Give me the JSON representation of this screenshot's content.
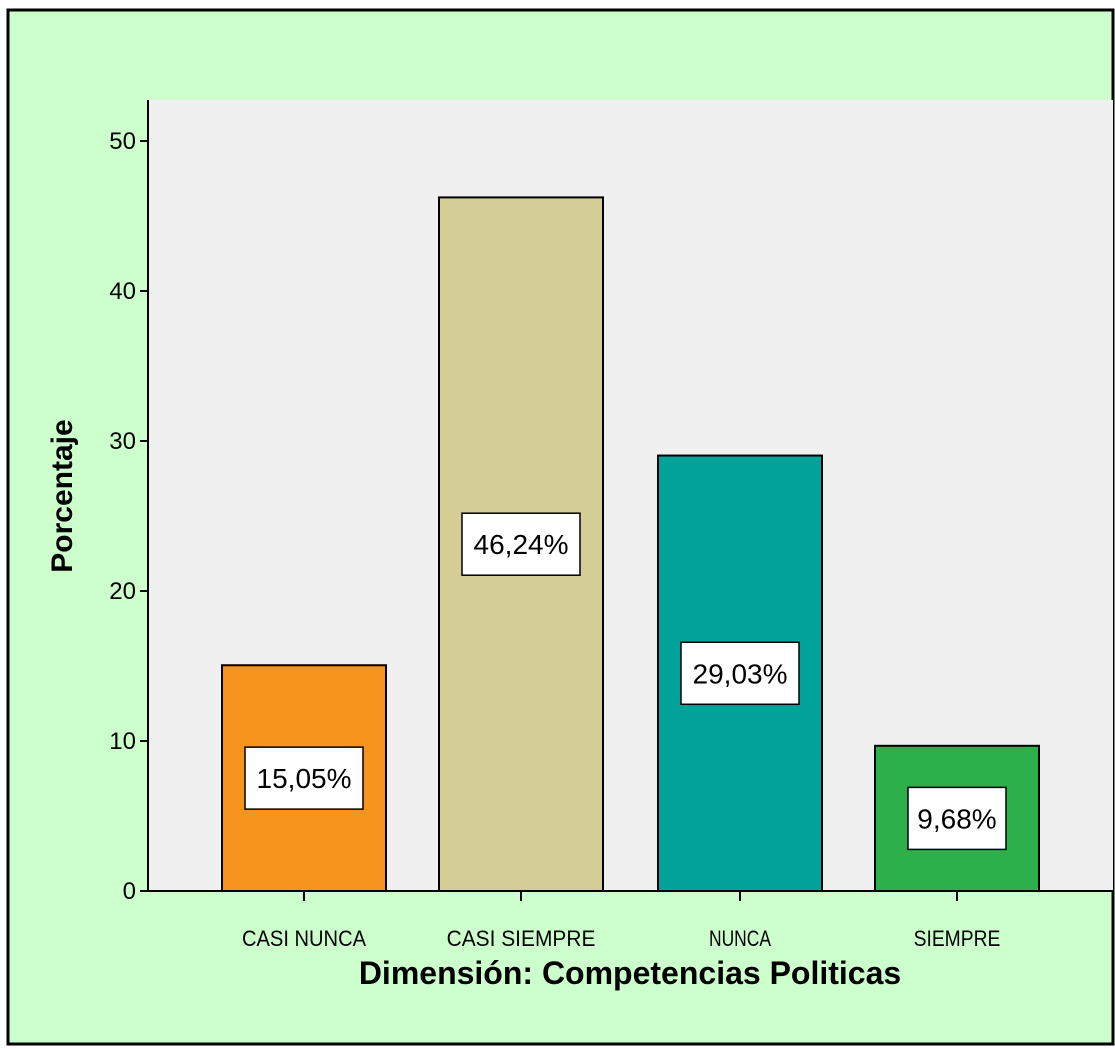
{
  "chart_data": {
    "type": "bar",
    "title": "",
    "xlabel": "Dimensión: Competencias Politicas",
    "ylabel": "Porcentaje",
    "categories": [
      "CASI NUNCA",
      "CASI SIEMPRE",
      "NUNCA",
      "SIEMPRE"
    ],
    "values": [
      15.05,
      46.24,
      29.03,
      9.68
    ],
    "data_labels": [
      "15,05%",
      "46,24%",
      "29,03%",
      "9,68%"
    ],
    "colors": [
      "#F7941D",
      "#D4CD96",
      "#00A29A",
      "#2BB04A"
    ],
    "ylim": [
      0,
      52
    ],
    "yticks": [
      0,
      10,
      20,
      30,
      40,
      50
    ],
    "ytick_labels": [
      "0",
      "10",
      "20",
      "30",
      "40",
      "50"
    ],
    "grid": false,
    "legend": "none"
  },
  "style": {
    "outer_background": "#CCFFCC",
    "plot_background": "#F0F0F0",
    "border_color": "#000000",
    "bar_outline": "#000000"
  }
}
